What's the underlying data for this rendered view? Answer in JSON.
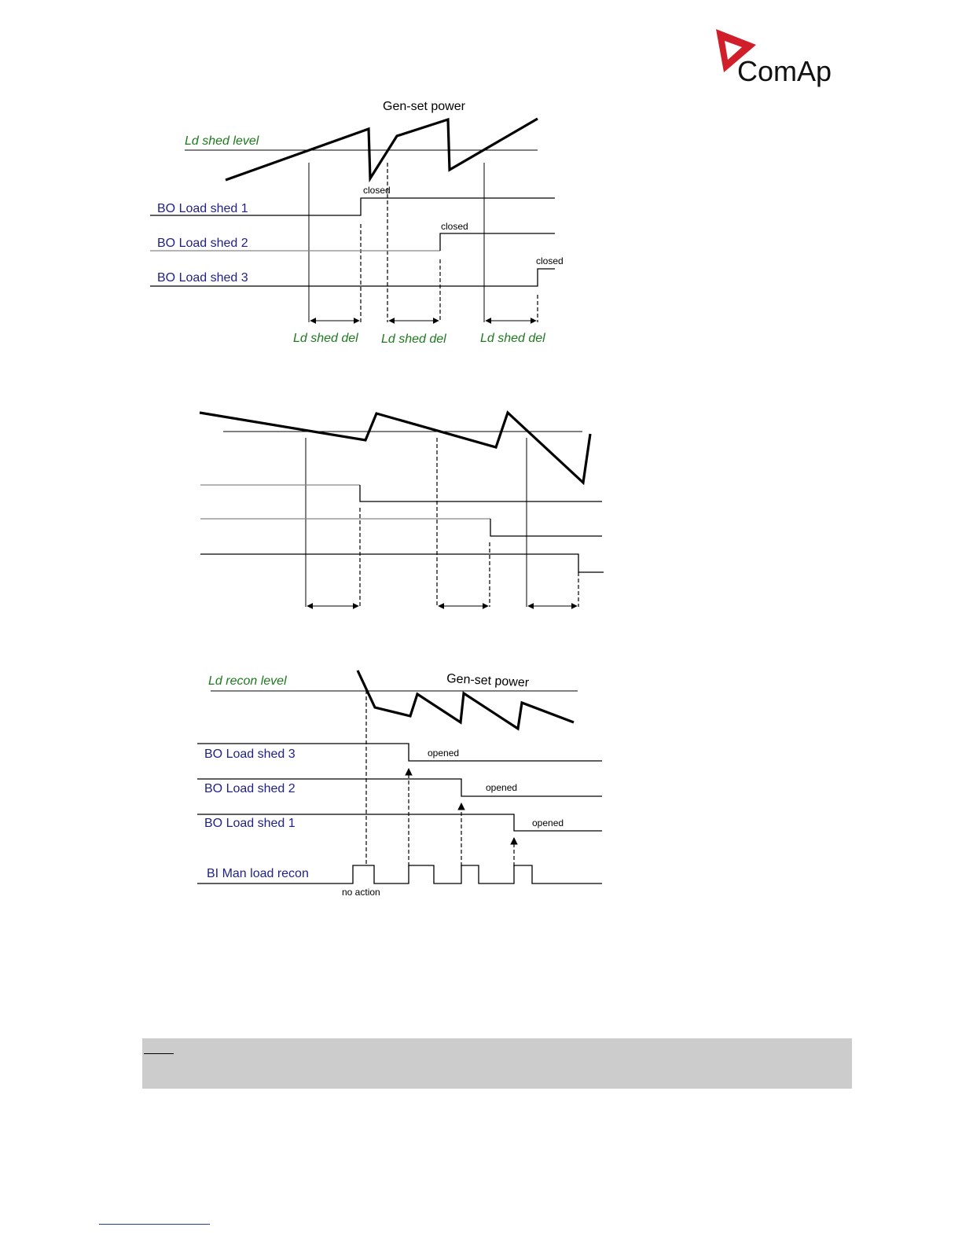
{
  "brand": {
    "name": "ComAp",
    "logo_color": "#d01f2b"
  },
  "diagram1": {
    "title": "Gen-set power",
    "level_label": "Ld shed level",
    "signals": [
      "BO Load shed 1",
      "BO Load shed 2",
      "BO Load shed 3"
    ],
    "state_label": "closed",
    "delay_label": "Ld shed del"
  },
  "diagram3": {
    "title": "Gen-set power",
    "level_label": "Ld recon level",
    "signals": [
      "BO Load shed 3",
      "BO Load shed 2",
      "BO Load shed 1"
    ],
    "state_label": "opened",
    "input_label": "BI Man load recon",
    "no_action_label": "no action"
  },
  "colors": {
    "signal_label": "#1f1f8a",
    "level_label": "#1e7a1e",
    "note_background": "#cccccc"
  }
}
